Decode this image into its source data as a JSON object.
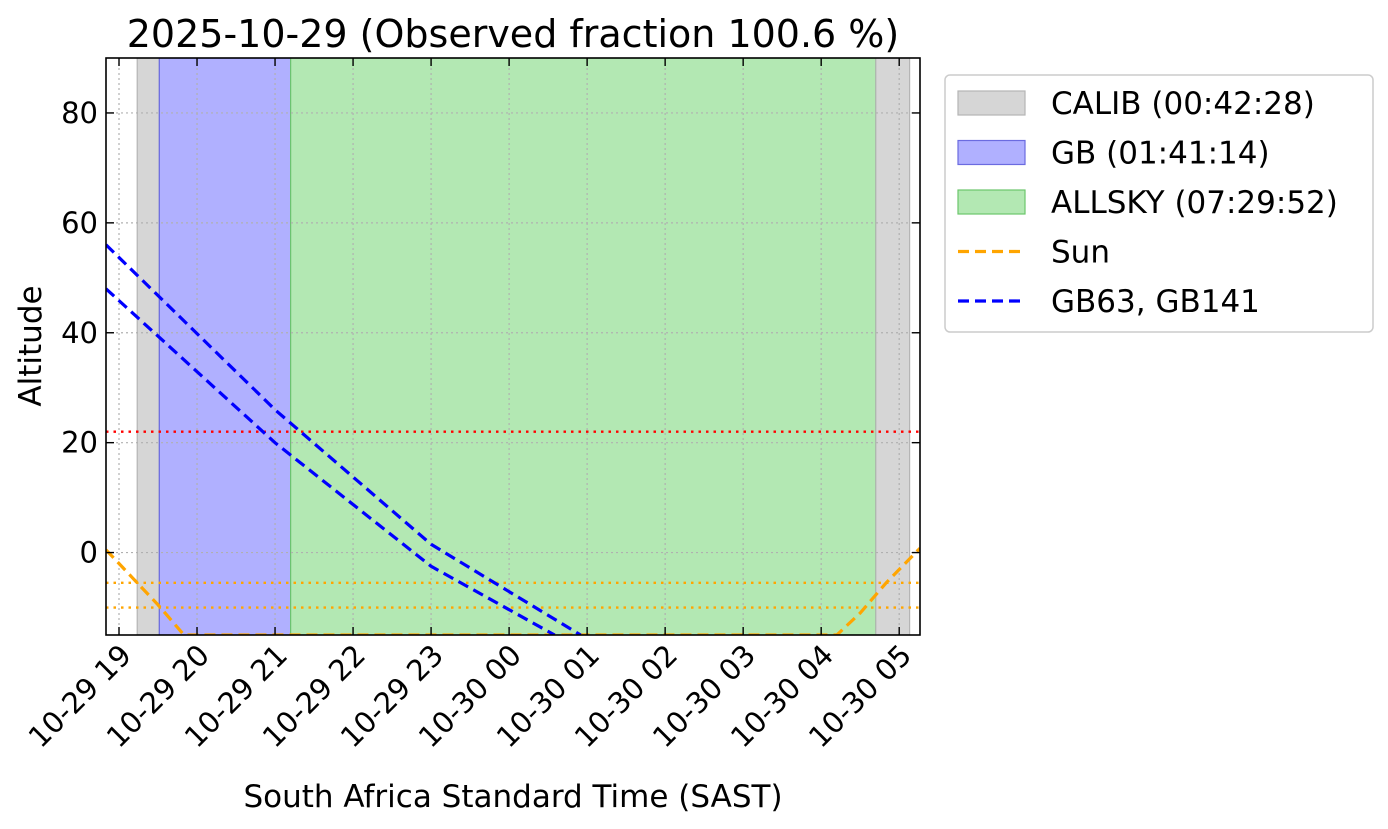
{
  "chart_data": {
    "type": "line",
    "title": "2025-10-29 (Observed fraction 100.6 %)",
    "xlabel": "South Africa Standard Time (SAST)",
    "ylabel": "Altitude",
    "x_axis_type": "datetime",
    "xlim": [
      "2025-10-29T18:50",
      "2025-10-30T05:16"
    ],
    "ylim": [
      -15,
      90
    ],
    "grid": true,
    "grid_style": "dotted",
    "x_ticks": [
      {
        "t": "2025-10-29T19:00",
        "label": "10-29 19"
      },
      {
        "t": "2025-10-29T20:00",
        "label": "10-29 20"
      },
      {
        "t": "2025-10-29T21:00",
        "label": "10-29 21"
      },
      {
        "t": "2025-10-29T22:00",
        "label": "10-29 22"
      },
      {
        "t": "2025-10-29T23:00",
        "label": "10-29 23"
      },
      {
        "t": "2025-10-30T00:00",
        "label": "10-30 00"
      },
      {
        "t": "2025-10-30T01:00",
        "label": "10-30 01"
      },
      {
        "t": "2025-10-30T02:00",
        "label": "10-30 02"
      },
      {
        "t": "2025-10-30T03:00",
        "label": "10-30 03"
      },
      {
        "t": "2025-10-30T04:00",
        "label": "10-30 04"
      },
      {
        "t": "2025-10-30T05:00",
        "label": "10-30 05"
      }
    ],
    "y_ticks": [
      0,
      20,
      40,
      60,
      80
    ],
    "spans": [
      {
        "name": "CALIB",
        "legend_label": "CALIB (00:42:28)",
        "color": "#d6d6d6",
        "edge": "#b5b5b5",
        "start": "2025-10-29T19:14",
        "end": "2025-10-29T19:31"
      },
      {
        "name": "GB",
        "legend_label": "GB (01:41:14)",
        "color": "#b0b0ff",
        "edge": "#6b6be0",
        "start": "2025-10-29T19:31",
        "end": "2025-10-29T21:12"
      },
      {
        "name": "ALLSKY",
        "legend_label": "ALLSKY (07:29:52)",
        "color": "#b3e8b3",
        "edge": "#6cc66c",
        "start": "2025-10-29T21:12",
        "end": "2025-10-30T04:42"
      },
      {
        "name": "CALIB",
        "legend_label": "",
        "color": "#d6d6d6",
        "edge": "#b5b5b5",
        "start": "2025-10-30T04:42",
        "end": "2025-10-30T05:08"
      }
    ],
    "series": [
      {
        "name": "Sun",
        "color": "#ffa500",
        "style": "dashed",
        "points": [
          {
            "t": "2025-10-29T18:50",
            "y": 0.5
          },
          {
            "t": "2025-10-29T19:10",
            "y": -4.5
          },
          {
            "t": "2025-10-29T19:30",
            "y": -9.5
          },
          {
            "t": "2025-10-29T19:50",
            "y": -15
          },
          {
            "t": "2025-10-30T04:12",
            "y": -15
          },
          {
            "t": "2025-10-30T04:30",
            "y": -11
          },
          {
            "t": "2025-10-30T04:50",
            "y": -5.5
          },
          {
            "t": "2025-10-30T05:16",
            "y": 0.8
          }
        ]
      },
      {
        "name": "GB63, GB141",
        "color": "#0000ff",
        "style": "dashed",
        "points": [
          {
            "t": "2025-10-29T18:50",
            "y": 56
          },
          {
            "t": "2025-10-29T21:00",
            "y": 26
          },
          {
            "t": "2025-10-29T23:00",
            "y": 1.5
          },
          {
            "t": "2025-10-30T00:55",
            "y": -15
          }
        ]
      },
      {
        "name": "",
        "color": "#0000ff",
        "style": "dashed",
        "points": [
          {
            "t": "2025-10-29T18:50",
            "y": 48
          },
          {
            "t": "2025-10-29T21:00",
            "y": 20
          },
          {
            "t": "2025-10-29T23:00",
            "y": -2.5
          },
          {
            "t": "2025-10-30T00:35",
            "y": -15
          }
        ]
      }
    ],
    "hlines": [
      {
        "y": 22,
        "color": "#ff0000",
        "style": "dotted"
      },
      {
        "y": -5.5,
        "color": "#ffa500",
        "style": "dotted"
      },
      {
        "y": -10,
        "color": "#ffa500",
        "style": "dotted"
      }
    ],
    "legend": {
      "placement": "outside right, top",
      "entries": [
        {
          "label": "CALIB (00:42:28)",
          "kind": "patch",
          "color": "#d6d6d6",
          "edge": "#b5b5b5"
        },
        {
          "label": "GB (01:41:14)",
          "kind": "patch",
          "color": "#b0b0ff",
          "edge": "#6b6be0"
        },
        {
          "label": "ALLSKY (07:29:52)",
          "kind": "patch",
          "color": "#b3e8b3",
          "edge": "#6cc66c"
        },
        {
          "label": "Sun",
          "kind": "line",
          "color": "#ffa500"
        },
        {
          "label": "GB63, GB141",
          "kind": "line",
          "color": "#0000ff"
        }
      ]
    }
  }
}
